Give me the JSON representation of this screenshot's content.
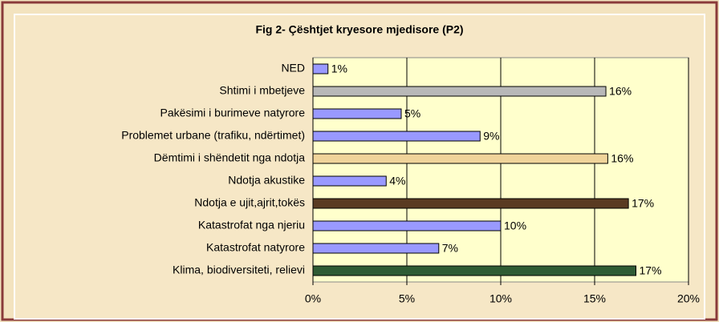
{
  "chart_data": {
    "type": "bar",
    "orientation": "horizontal",
    "title": "Fig 2- Çështjet kryesore mjedisore (P2)",
    "categories": [
      "NED",
      "Shtimi i mbetjeve",
      "Pakësimi i burimeve natyrore",
      "Problemet urbane (trafiku, ndërtimet)",
      "Dëmtimi i shëndetit nga ndotja",
      "Ndotja akustike",
      "Ndotja e ujit,ajrit,tokës",
      "Katastrofat nga njeriu",
      "Katastrofat natyrore",
      "Klima, biodiversiteti, relievi"
    ],
    "values": [
      0.8,
      15.6,
      4.7,
      8.9,
      15.7,
      3.9,
      16.8,
      10.0,
      6.7,
      17.2
    ],
    "value_labels": [
      "1%",
      "16%",
      "5%",
      "9%",
      "16%",
      "4%",
      "17%",
      "10%",
      "7%",
      "17%"
    ],
    "colors": [
      "#9999ff",
      "#b8b8b8",
      "#9999ff",
      "#9999ff",
      "#f0d49a",
      "#9999ff",
      "#5a3b22",
      "#9999ff",
      "#9999ff",
      "#2f5c34"
    ],
    "xlim": [
      0,
      20
    ],
    "xticks": [
      {
        "value": 0,
        "label": "0%"
      },
      {
        "value": 5,
        "label": "5%"
      },
      {
        "value": 10,
        "label": "10%"
      },
      {
        "value": 15,
        "label": "15%"
      },
      {
        "value": 20,
        "label": "20%"
      }
    ],
    "grid": true
  }
}
